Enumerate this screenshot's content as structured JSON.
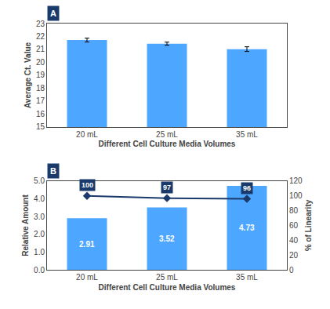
{
  "chart_data": [
    {
      "type": "bar",
      "title": "A",
      "categories": [
        "20 mL",
        "25 mL",
        "35 mL"
      ],
      "values": [
        21.72,
        21.44,
        21.02
      ],
      "errors": [
        0.15,
        0.12,
        0.18
      ],
      "color": "#4DA6FF",
      "xlabel": "Different Cell Culture Media Volumes",
      "ylabel": "Average Ct. Value",
      "ylim": [
        15,
        23
      ],
      "yticks": [
        15,
        16,
        17,
        18,
        19,
        20,
        21,
        22,
        23
      ],
      "grid": false,
      "data_labels": true
    },
    {
      "type": "bar",
      "title": "B",
      "categories": [
        "20 mL",
        "25 mL",
        "35 mL"
      ],
      "series": [
        {
          "type": "bar",
          "color": "#4DA6FF",
          "values": [
            2.91,
            3.52,
            4.73
          ],
          "data_labels": true
        },
        {
          "type": "line",
          "axis": "y2",
          "color": "#1A3A6B",
          "marker": "diamond",
          "values": [
            100,
            97,
            96
          ],
          "data_labels": true
        }
      ],
      "xlabel": "Different Cell Culture Media Volumes",
      "ylabel": "Relative Amount",
      "y2label": "% of Linearity",
      "ylim": [
        0.0,
        5.0
      ],
      "yticks": [
        {
          "value": 0.0,
          "label": "0.0"
        },
        {
          "value": 1.0,
          "label": "1.0"
        },
        {
          "value": 2.0,
          "label": "2.0"
        },
        {
          "value": 3.0,
          "label": "3.0"
        },
        {
          "value": 4.0,
          "label": "4.0"
        },
        {
          "value": 5.0,
          "label": "5.0"
        }
      ],
      "y2lim": [
        0,
        120
      ],
      "y2ticks": [
        0,
        20,
        40,
        60,
        80,
        100,
        120
      ],
      "grid": false
    }
  ]
}
